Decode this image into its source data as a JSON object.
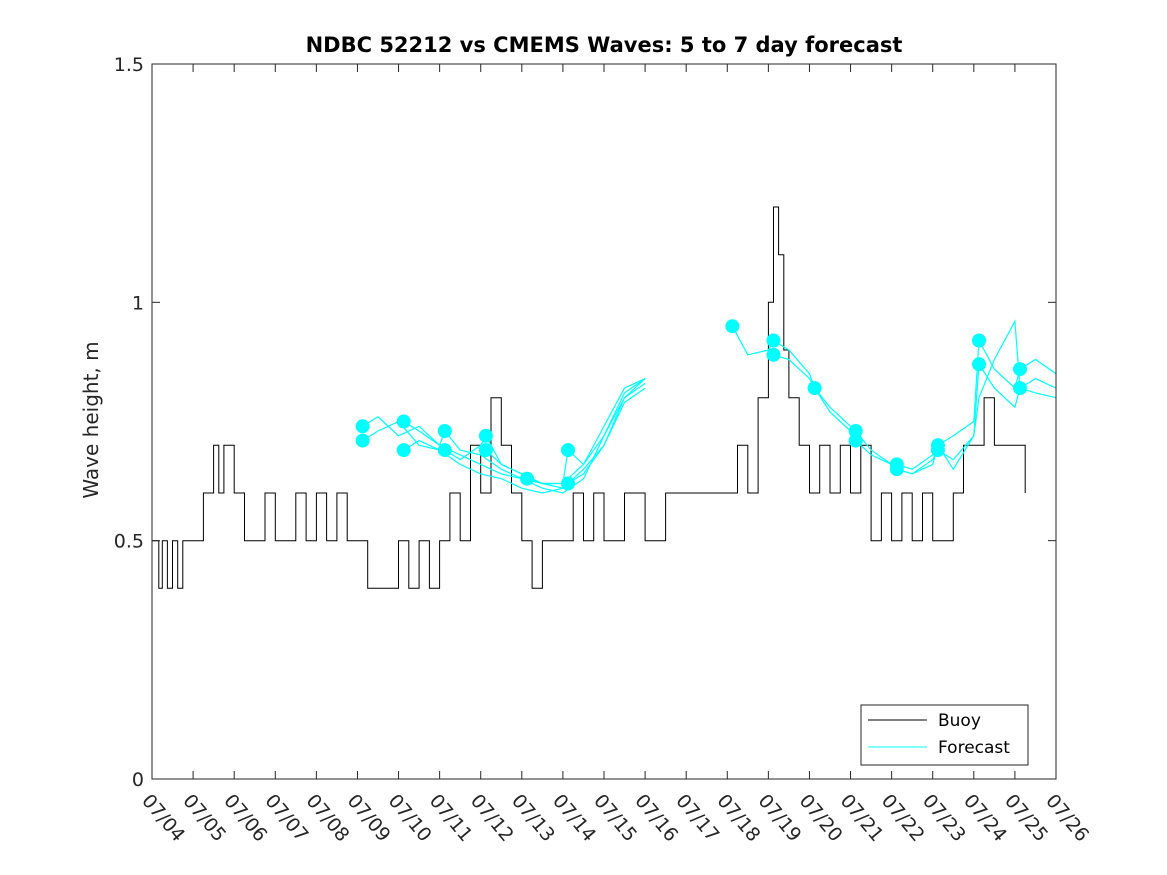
{
  "chart_data": {
    "type": "line",
    "title": "NDBC 52212 vs CMEMS Waves: 5 to 7 day forecast",
    "xlabel": "",
    "ylabel": "Wave height, m",
    "ylim": [
      0,
      1.5
    ],
    "yticks": [
      0,
      0.5,
      1,
      1.5
    ],
    "ytick_labels": [
      "0",
      "0.5",
      "1",
      "1.5"
    ],
    "xlim": [
      "07/04",
      "07/26"
    ],
    "xtick_labels": [
      "07/04",
      "07/05",
      "07/06",
      "07/07",
      "07/08",
      "07/09",
      "07/10",
      "07/11",
      "07/12",
      "07/13",
      "07/14",
      "07/15",
      "07/16",
      "07/17",
      "07/18",
      "07/19",
      "07/20",
      "07/21",
      "07/22",
      "07/23",
      "07/24",
      "07/25",
      "07/26"
    ],
    "grid": false,
    "legend_position": "bottom-right",
    "colors": {
      "buoy": "#000000",
      "forecast": "#00ffff"
    },
    "series": [
      {
        "name": "Buoy",
        "color": "#000000",
        "x": [
          "07/04 00:00",
          "07/04 04:00",
          "07/04 06:00",
          "07/04 09:00",
          "07/04 12:00",
          "07/04 15:00",
          "07/04 18:00",
          "07/05 00:00",
          "07/05 06:00",
          "07/05 12:00",
          "07/05 15:00",
          "07/05 18:00",
          "07/06 00:00",
          "07/06 06:00",
          "07/06 12:00",
          "07/06 18:00",
          "07/07 00:00",
          "07/07 06:00",
          "07/07 12:00",
          "07/07 18:00",
          "07/08 00:00",
          "07/08 06:00",
          "07/08 12:00",
          "07/08 18:00",
          "07/09 00:00",
          "07/09 06:00",
          "07/09 12:00",
          "07/09 18:00",
          "07/10 00:00",
          "07/10 06:00",
          "07/10 12:00",
          "07/10 18:00",
          "07/11 00:00",
          "07/11 06:00",
          "07/11 12:00",
          "07/11 18:00",
          "07/12 00:00",
          "07/12 06:00",
          "07/12 12:00",
          "07/12 18:00",
          "07/13 00:00",
          "07/13 06:00",
          "07/13 12:00",
          "07/13 18:00",
          "07/14 00:00",
          "07/14 06:00",
          "07/14 12:00",
          "07/14 18:00",
          "07/15 00:00",
          "07/15 12:00",
          "07/16 00:00",
          "07/16 12:00",
          "07/17 00:00",
          "07/17 12:00",
          "07/18 00:00",
          "07/18 06:00",
          "07/18 12:00",
          "07/18 18:00",
          "07/19 00:00",
          "07/19 03:00",
          "07/19 06:00",
          "07/19 09:00",
          "07/19 12:00",
          "07/19 18:00",
          "07/20 00:00",
          "07/20 06:00",
          "07/20 12:00",
          "07/20 18:00",
          "07/21 00:00",
          "07/21 06:00",
          "07/21 12:00",
          "07/21 18:00",
          "07/22 00:00",
          "07/22 06:00",
          "07/22 12:00",
          "07/22 18:00",
          "07/23 00:00",
          "07/23 06:00",
          "07/23 12:00",
          "07/23 18:00",
          "07/24 00:00",
          "07/24 06:00",
          "07/24 12:00",
          "07/24 18:00",
          "07/25 00:00",
          "07/25 06:00"
        ],
        "values": [
          0.5,
          0.4,
          0.5,
          0.4,
          0.5,
          0.4,
          0.5,
          0.5,
          0.6,
          0.7,
          0.6,
          0.7,
          0.6,
          0.5,
          0.5,
          0.6,
          0.5,
          0.5,
          0.6,
          0.5,
          0.6,
          0.5,
          0.6,
          0.5,
          0.5,
          0.4,
          0.4,
          0.4,
          0.5,
          0.4,
          0.5,
          0.4,
          0.5,
          0.6,
          0.5,
          0.7,
          0.6,
          0.8,
          0.7,
          0.6,
          0.5,
          0.4,
          0.5,
          0.5,
          0.5,
          0.6,
          0.5,
          0.6,
          0.5,
          0.6,
          0.5,
          0.6,
          0.6,
          0.6,
          0.6,
          0.7,
          0.6,
          0.8,
          1.0,
          1.2,
          1.1,
          0.9,
          0.8,
          0.7,
          0.6,
          0.7,
          0.6,
          0.7,
          0.6,
          0.7,
          0.5,
          0.6,
          0.5,
          0.6,
          0.5,
          0.6,
          0.5,
          0.5,
          0.6,
          0.7,
          0.7,
          0.8,
          0.7,
          0.7,
          0.7,
          0.6
        ]
      },
      {
        "name": "Forecast",
        "color": "#00ffff",
        "runs": [
          {
            "x": [
              "07/09 03:00",
              "07/09 12:00",
              "07/10 00:00",
              "07/10 12:00",
              "07/11 00:00",
              "07/11 12:00",
              "07/12 00:00",
              "07/12 12:00",
              "07/13 00:00",
              "07/13 12:00",
              "07/14 00:00",
              "07/14 12:00",
              "07/15 00:00",
              "07/15 12:00",
              "07/16 00:00"
            ],
            "values": [
              0.74,
              0.76,
              0.72,
              0.74,
              0.7,
              0.68,
              0.66,
              0.64,
              0.63,
              0.62,
              0.62,
              0.66,
              0.74,
              0.82,
              0.84
            ]
          },
          {
            "x": [
              "07/09 03:00",
              "07/09 12:00",
              "07/10 00:00",
              "07/10 12:00",
              "07/11 00:00",
              "07/11 12:00",
              "07/12 00:00",
              "07/12 12:00",
              "07/13 00:00",
              "07/13 12:00",
              "07/14 00:00",
              "07/14 12:00",
              "07/15 00:00",
              "07/15 12:00",
              "07/16 00:00"
            ],
            "values": [
              0.71,
              0.73,
              0.75,
              0.7,
              0.69,
              0.66,
              0.64,
              0.63,
              0.61,
              0.6,
              0.61,
              0.65,
              0.7,
              0.8,
              0.83
            ]
          },
          {
            "x": [
              "07/10 03:00",
              "07/10 12:00",
              "07/11 00:00",
              "07/11 03:00",
              "07/11 12:00",
              "07/12 00:00",
              "07/12 12:00",
              "07/13 00:00",
              "07/13 12:00",
              "07/14 00:00",
              "07/14 12:00",
              "07/15 00:00",
              "07/15 12:00",
              "07/16 00:00"
            ],
            "values": [
              0.75,
              0.73,
              0.7,
              0.73,
              0.69,
              0.68,
              0.65,
              0.63,
              0.61,
              0.6,
              0.63,
              0.72,
              0.81,
              0.84
            ]
          },
          {
            "x": [
              "07/10 03:00",
              "07/10 12:00",
              "07/11 00:00",
              "07/11 03:00",
              "07/11 12:00",
              "07/12 00:00",
              "07/12 03:00",
              "07/12 12:00",
              "07/13 00:00",
              "07/13 12:00",
              "07/14 00:00",
              "07/14 03:00",
              "07/14 12:00",
              "07/15 00:00",
              "07/15 12:00",
              "07/16 00:00"
            ],
            "values": [
              0.69,
              0.71,
              0.69,
              0.69,
              0.67,
              0.7,
              0.72,
              0.66,
              0.64,
              0.62,
              0.61,
              0.62,
              0.64,
              0.7,
              0.79,
              0.82
            ]
          },
          {
            "x": [
              "07/12 03:00",
              "07/12 12:00",
              "07/13 00:00",
              "07/13 03:00",
              "07/13 12:00",
              "07/14 00:00",
              "07/14 03:00",
              "07/14 12:00",
              "07/15 00:00",
              "07/15 12:00",
              "07/16 00:00"
            ],
            "values": [
              0.69,
              0.66,
              0.64,
              0.63,
              0.62,
              0.62,
              0.69,
              0.66,
              0.72,
              0.8,
              0.84
            ]
          },
          {
            "x": [
              "07/18 03:00",
              "07/18 12:00",
              "07/19 00:00",
              "07/19 03:00",
              "07/19 12:00",
              "07/20 00:00",
              "07/20 03:00",
              "07/20 12:00",
              "07/21 00:00",
              "07/21 03:00",
              "07/21 12:00",
              "07/22 00:00",
              "07/22 03:00",
              "07/22 12:00",
              "07/23 00:00",
              "07/23 03:00",
              "07/23 12:00",
              "07/24 00:00",
              "07/24 03:00",
              "07/24 12:00",
              "07/25 00:00",
              "07/25 03:00",
              "07/25 12:00",
              "07/26 00:00"
            ],
            "values": [
              0.95,
              0.89,
              0.9,
              0.92,
              0.9,
              0.85,
              0.82,
              0.78,
              0.74,
              0.73,
              0.69,
              0.66,
              0.66,
              0.65,
              0.68,
              0.7,
              0.72,
              0.75,
              0.92,
              0.86,
              0.82,
              0.86,
              0.88,
              0.85
            ]
          },
          {
            "x": [
              "07/19 03:00",
              "07/19 12:00",
              "07/20 00:00",
              "07/20 03:00",
              "07/20 12:00",
              "07/21 00:00",
              "07/21 03:00",
              "07/21 12:00",
              "07/22 00:00",
              "07/22 03:00",
              "07/22 12:00",
              "07/23 00:00",
              "07/23 03:00",
              "07/23 12:00",
              "07/24 00:00",
              "07/24 03:00",
              "07/24 12:00",
              "07/25 00:00",
              "07/25 03:00",
              "07/25 12:00",
              "07/26 00:00"
            ],
            "values": [
              0.89,
              0.88,
              0.84,
              0.82,
              0.77,
              0.73,
              0.71,
              0.68,
              0.66,
              0.65,
              0.64,
              0.67,
              0.69,
              0.67,
              0.72,
              0.87,
              0.82,
              0.78,
              0.82,
              0.84,
              0.82
            ]
          },
          {
            "x": [
              "07/22 03:00",
              "07/22 12:00",
              "07/23 00:00",
              "07/23 03:00",
              "07/23 12:00",
              "07/24 00:00",
              "07/24 03:00",
              "07/24 12:00",
              "07/25 00:00",
              "07/25 03:00",
              "07/25 12:00",
              "07/26 00:00"
            ],
            "values": [
              0.65,
              0.64,
              0.66,
              0.7,
              0.65,
              0.72,
              0.8,
              0.88,
              0.96,
              0.82,
              0.81,
              0.8
            ]
          }
        ],
        "markers": [
          {
            "x": "07/09 03:00",
            "y": 0.74
          },
          {
            "x": "07/09 03:00",
            "y": 0.71
          },
          {
            "x": "07/10 03:00",
            "y": 0.75
          },
          {
            "x": "07/10 03:00",
            "y": 0.69
          },
          {
            "x": "07/11 03:00",
            "y": 0.73
          },
          {
            "x": "07/11 03:00",
            "y": 0.69
          },
          {
            "x": "07/12 03:00",
            "y": 0.72
          },
          {
            "x": "07/12 03:00",
            "y": 0.69
          },
          {
            "x": "07/13 03:00",
            "y": 0.63
          },
          {
            "x": "07/14 03:00",
            "y": 0.69
          },
          {
            "x": "07/14 03:00",
            "y": 0.62
          },
          {
            "x": "07/18 03:00",
            "y": 0.95
          },
          {
            "x": "07/19 03:00",
            "y": 0.92
          },
          {
            "x": "07/19 03:00",
            "y": 0.89
          },
          {
            "x": "07/20 03:00",
            "y": 0.82
          },
          {
            "x": "07/21 03:00",
            "y": 0.73
          },
          {
            "x": "07/21 03:00",
            "y": 0.71
          },
          {
            "x": "07/22 03:00",
            "y": 0.66
          },
          {
            "x": "07/22 03:00",
            "y": 0.65
          },
          {
            "x": "07/23 03:00",
            "y": 0.7
          },
          {
            "x": "07/23 03:00",
            "y": 0.69
          },
          {
            "x": "07/24 03:00",
            "y": 0.92
          },
          {
            "x": "07/24 03:00",
            "y": 0.87
          },
          {
            "x": "07/25 03:00",
            "y": 0.86
          },
          {
            "x": "07/25 03:00",
            "y": 0.82
          }
        ]
      }
    ]
  }
}
